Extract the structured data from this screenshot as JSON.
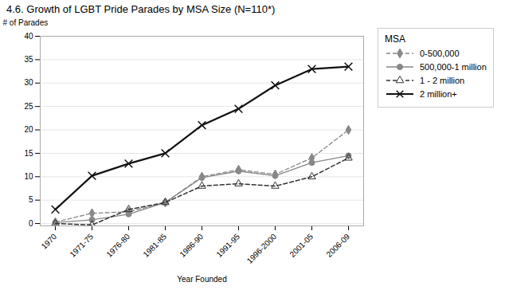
{
  "chart_data": {
    "type": "line",
    "title": "4.6. Growth of LGBT Pride Parades by MSA Size (N=110*)",
    "xlabel": "Year Founded",
    "ylabel": "# of Parades",
    "categories": [
      "1970",
      "1971-75",
      "1976-80",
      "1981-85",
      "1986-90",
      "1991-95",
      "1996-2000",
      "2001-05",
      "2006-09"
    ],
    "series": [
      {
        "name": "0-500,000",
        "color": "#888888",
        "line_style": "dashed",
        "marker": "diamond",
        "values": [
          0.3,
          2.2,
          2.5,
          4.5,
          10.0,
          11.5,
          10.5,
          14.0,
          20.0
        ]
      },
      {
        "name": "500,000-1 million",
        "color": "#888888",
        "line_style": "solid",
        "marker": "circle",
        "values": [
          0.2,
          0.8,
          2.0,
          4.5,
          9.8,
          11.2,
          10.2,
          13.0,
          14.5
        ]
      },
      {
        "name": "1 - 2 million",
        "color": "#333333",
        "line_style": "dashed",
        "marker": "triangle",
        "values": [
          0.0,
          -0.3,
          3.0,
          4.5,
          8.0,
          8.5,
          8.0,
          10.0,
          14.0
        ]
      },
      {
        "name": "2 million+",
        "color": "#111111",
        "line_style": "solid",
        "marker": "x",
        "values": [
          3.0,
          10.2,
          12.8,
          15.0,
          21.0,
          24.5,
          29.5,
          33.0,
          33.5
        ]
      }
    ],
    "ylim": [
      -0.5,
      40
    ],
    "yticks": [
      0,
      5,
      10,
      15,
      20,
      25,
      30,
      35,
      40
    ],
    "grid": true,
    "legend": "right",
    "legend_title": "MSA"
  }
}
